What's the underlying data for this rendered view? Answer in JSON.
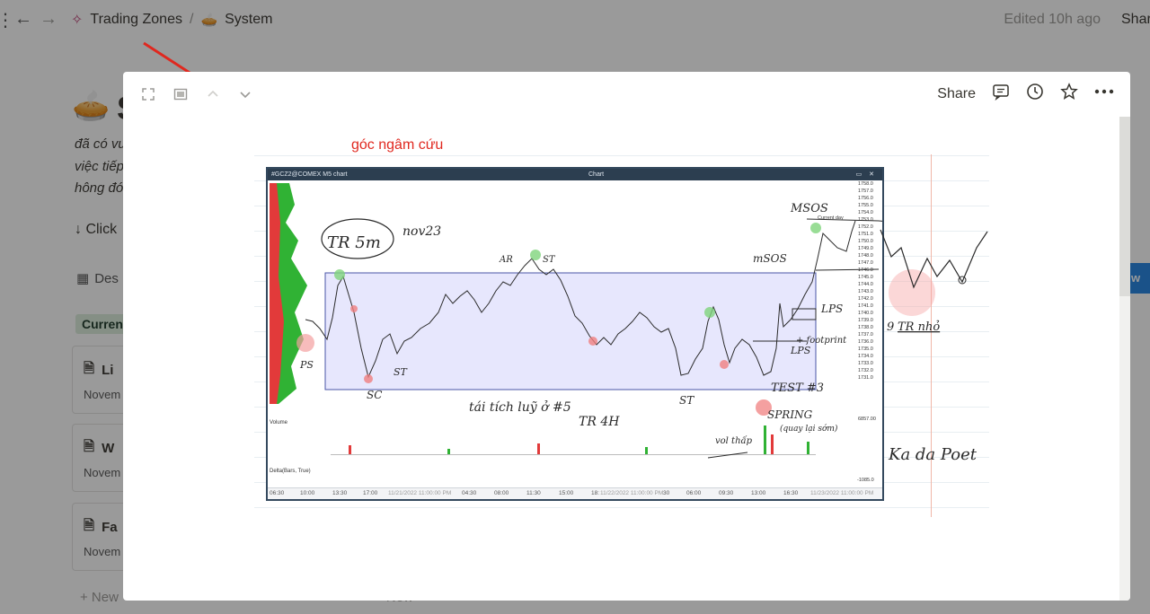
{
  "topbar": {
    "workspace": "Trading Zones",
    "separator": "/",
    "page": "System",
    "edited": "Edited 10h ago",
    "share": "Share"
  },
  "page": {
    "title_start": "S",
    "desc_lines": [
      "đã có vu",
      "việc tiếp",
      "hông đó"
    ],
    "click_text": "↓ Click",
    "db_view": "Des",
    "tag": "Curren",
    "cards": [
      {
        "title": "Li",
        "date": "Novem"
      },
      {
        "title": "W",
        "date": "Novem"
      },
      {
        "title": "Fa",
        "date": "Novem"
      }
    ],
    "new_label": "+ New",
    "new_label_2": "+ New",
    "blue_button": "w"
  },
  "modal": {
    "share": "Share",
    "note_red": "góc ngâm cứu"
  },
  "chart": {
    "symbol": "#GCZ2@COMEX  M5 chart",
    "title": "Chart",
    "time_ticks": [
      "06:30",
      "10:00",
      "13:30",
      "17:00",
      "11/21/2022 11:00:00 PM",
      "04:30",
      "08:00",
      "11:30",
      "15:00",
      "18:",
      "11/22/2022 11:00:00 PM",
      "30",
      "06:00",
      "09:30",
      "13:00",
      "16:30",
      "11/23/2022 11:00:00 PM"
    ],
    "price_ticks": [
      "1758.0",
      "1757.0",
      "1756.0",
      "1755.0",
      "1754.0",
      "1753.0",
      "1752.0",
      "1751.0",
      "1750.0",
      "1749.0",
      "1748.0",
      "1747.0",
      "1746.0",
      "1745.0",
      "1744.0",
      "1743.0",
      "1742.0",
      "1741.0",
      "1740.0",
      "1739.0",
      "1738.0",
      "1737.0",
      "1736.0",
      "1735.0",
      "1734.0",
      "1733.0",
      "1732.0",
      "1731.0",
      "6857.00"
    ],
    "volume_label": "Volume",
    "delta_label": "Delta(Bars, True)",
    "delta_values": [
      "-1085.0"
    ],
    "current_day": "Current day",
    "annotations": {
      "tr5m": "TR 5m",
      "date_note": "nov23",
      "ar": "AR",
      "st_top": "ST",
      "msos_top": "MSOS",
      "msos_lower": "mSOS",
      "lps_upper": "LPS",
      "footprint": "+ footprint",
      "lps_lower": "LPS",
      "ps": "PS",
      "sc": "SC",
      "st_left": "ST",
      "st_mid": "ST",
      "test": "TEST #3",
      "spring": "SPRING",
      "spring_note": "(quay lại sớm)",
      "accum_line1": "tái tích luỹ ở #5",
      "accum_line2": "TR 4H",
      "vol_thap": "vol thấp",
      "tr_nho": "TR nhỏ",
      "tr_nho_prefix": "9",
      "signature": "Ka da Poet"
    }
  },
  "colors": {
    "accent_red": "#e0281f",
    "range_fill": "#e8e8ff",
    "range_line": "#4a56a6",
    "buy": "#2eae32",
    "sell": "#e23a3a",
    "tag_bg": "#dbeddb"
  }
}
